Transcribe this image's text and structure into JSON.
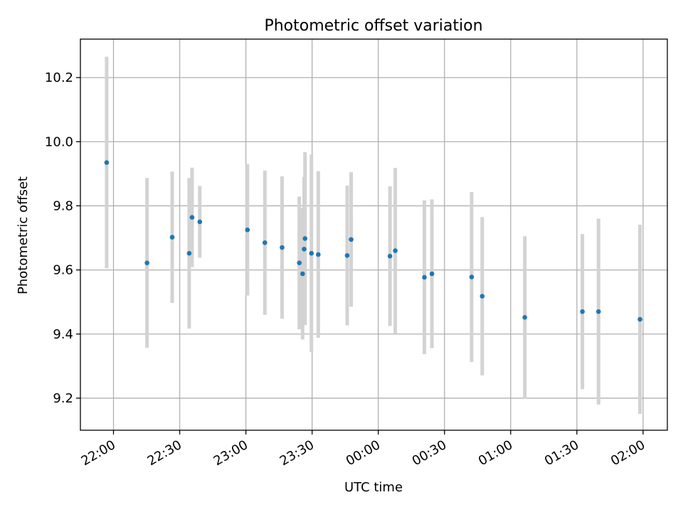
{
  "chart_data": {
    "type": "scatter",
    "title": "Photometric offset variation",
    "xlabel": "UTC time",
    "ylabel": "Photometric offset",
    "x_ticks": [
      "22:00",
      "22:30",
      "23:00",
      "23:30",
      "00:00",
      "00:30",
      "01:00",
      "01:30",
      "02:00"
    ],
    "x_tick_minutes": [
      0,
      30,
      60,
      90,
      120,
      150,
      180,
      210,
      240
    ],
    "xlim_minutes": [
      -15,
      251
    ],
    "y_ticks": [
      "9.2",
      "9.4",
      "9.6",
      "9.8",
      "10.0",
      "10.2"
    ],
    "y_tick_values": [
      9.2,
      9.4,
      9.6,
      9.8,
      10.0,
      10.2
    ],
    "ylim": [
      9.1,
      10.32
    ],
    "grid": true,
    "marker_color": "#1f77b4",
    "errorbar_color": "#d3d3d3",
    "x_unit": "minutes after 22:00 UTC",
    "points": [
      {
        "x": -3.1,
        "y": 9.935,
        "err": 0.33
      },
      {
        "x": 15.2,
        "y": 9.622,
        "err": 0.265
      },
      {
        "x": 26.6,
        "y": 9.702,
        "err": 0.205
      },
      {
        "x": 34.3,
        "y": 9.652,
        "err": 0.235
      },
      {
        "x": 35.6,
        "y": 9.764,
        "err": 0.155
      },
      {
        "x": 39.1,
        "y": 9.75,
        "err": 0.112
      },
      {
        "x": 60.7,
        "y": 9.725,
        "err": 0.205
      },
      {
        "x": 68.6,
        "y": 9.685,
        "err": 0.225
      },
      {
        "x": 76.4,
        "y": 9.67,
        "err": 0.222
      },
      {
        "x": 84.2,
        "y": 9.622,
        "err": 0.207
      },
      {
        "x": 85.7,
        "y": 9.588,
        "err": 0.205
      },
      {
        "x": 86.4,
        "y": 9.665,
        "err": 0.225
      },
      {
        "x": 86.8,
        "y": 9.698,
        "err": 0.27
      },
      {
        "x": 89.7,
        "y": 9.652,
        "err": 0.308
      },
      {
        "x": 92.8,
        "y": 9.648,
        "err": 0.26
      },
      {
        "x": 105.9,
        "y": 9.645,
        "err": 0.218
      },
      {
        "x": 107.7,
        "y": 9.695,
        "err": 0.21
      },
      {
        "x": 125.3,
        "y": 9.643,
        "err": 0.218
      },
      {
        "x": 127.7,
        "y": 9.66,
        "err": 0.258
      },
      {
        "x": 140.9,
        "y": 9.577,
        "err": 0.24
      },
      {
        "x": 144.3,
        "y": 9.588,
        "err": 0.232
      },
      {
        "x": 162.3,
        "y": 9.578,
        "err": 0.265
      },
      {
        "x": 167.1,
        "y": 9.518,
        "err": 0.247
      },
      {
        "x": 186.4,
        "y": 9.452,
        "err": 0.253
      },
      {
        "x": 212.5,
        "y": 9.47,
        "err": 0.242
      },
      {
        "x": 219.8,
        "y": 9.47,
        "err": 0.29
      },
      {
        "x": 238.6,
        "y": 9.446,
        "err": 0.295
      }
    ]
  }
}
